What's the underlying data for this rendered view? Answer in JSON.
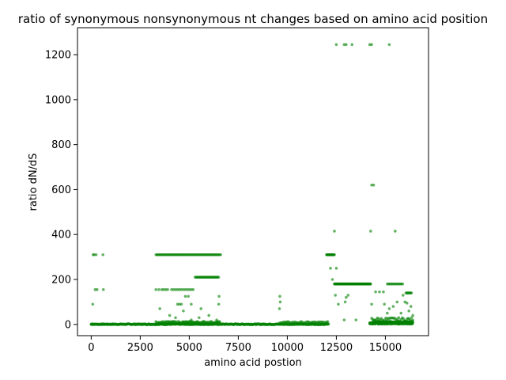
{
  "chart_data": {
    "type": "scatter",
    "title": "ratio of synonymous nonsynonymous nt changes based on amino acid position",
    "xlabel": "amino acid postion",
    "ylabel": "ratio dN/dS",
    "xlim": [
      -700,
      17200
    ],
    "ylim": [
      -50,
      1320
    ],
    "xticks": [
      0,
      2500,
      5000,
      7500,
      10000,
      12500,
      15000
    ],
    "xtick_labels": [
      "0",
      "2500",
      "5000",
      "7500",
      "10000",
      "12500",
      "15000"
    ],
    "yticks": [
      0,
      200,
      400,
      600,
      800,
      1000,
      1200
    ],
    "ytick_labels": [
      "0",
      "200",
      "400",
      "600",
      "800",
      "1000",
      "1200"
    ],
    "grid": false,
    "marker_color": "#008000",
    "marker_opacity": 0.6,
    "series": [
      {
        "points": [
          [
            0,
            0
          ],
          [
            50,
            3
          ],
          [
            100,
            310
          ],
          [
            150,
            310
          ],
          [
            200,
            155
          ],
          [
            250,
            310
          ],
          [
            300,
            155
          ],
          [
            80,
            90
          ],
          [
            600,
            310
          ],
          [
            620,
            155
          ],
          [
            650,
            0
          ],
          [
            9600,
            70
          ],
          [
            9620,
            125
          ],
          [
            9640,
            100
          ],
          [
            12200,
            250
          ],
          [
            12300,
            200
          ],
          [
            12400,
            415
          ],
          [
            12450,
            130
          ],
          [
            12500,
            250
          ],
          [
            12600,
            90
          ],
          [
            12500,
            1245
          ],
          [
            12900,
            1245
          ],
          [
            13000,
            1245
          ],
          [
            13300,
            1245
          ],
          [
            14200,
            1245
          ],
          [
            14300,
            1245
          ],
          [
            15200,
            1245
          ],
          [
            14300,
            620
          ],
          [
            14400,
            620
          ],
          [
            14250,
            415
          ],
          [
            15500,
            415
          ],
          [
            13000,
            120
          ],
          [
            13100,
            130
          ],
          [
            12950,
            100
          ],
          [
            12900,
            20
          ],
          [
            13500,
            20
          ],
          [
            14300,
            90
          ],
          [
            14500,
            145
          ],
          [
            14700,
            145
          ],
          [
            14900,
            145
          ],
          [
            14950,
            90
          ],
          [
            15100,
            50
          ],
          [
            15200,
            70
          ],
          [
            15400,
            80
          ],
          [
            15600,
            100
          ],
          [
            15900,
            130
          ],
          [
            16000,
            100
          ],
          [
            16100,
            95
          ],
          [
            16300,
            80
          ],
          [
            15800,
            50
          ],
          [
            16200,
            60
          ],
          [
            16400,
            40
          ],
          [
            3300,
            155
          ],
          [
            3450,
            155
          ],
          [
            3500,
            70
          ],
          [
            3600,
            155
          ],
          [
            3700,
            155
          ],
          [
            3800,
            155
          ],
          [
            3900,
            155
          ],
          [
            4100,
            155
          ],
          [
            4200,
            155
          ],
          [
            4300,
            155
          ],
          [
            4400,
            155
          ],
          [
            4500,
            155
          ],
          [
            4600,
            155
          ],
          [
            4700,
            155
          ],
          [
            4800,
            155
          ],
          [
            4900,
            155
          ],
          [
            5000,
            155
          ],
          [
            5100,
            155
          ],
          [
            5200,
            155
          ],
          [
            4400,
            90
          ],
          [
            4500,
            90
          ],
          [
            4600,
            90
          ],
          [
            4800,
            125
          ],
          [
            4950,
            125
          ],
          [
            5100,
            90
          ],
          [
            5600,
            70
          ],
          [
            6500,
            90
          ],
          [
            6520,
            125
          ],
          [
            4000,
            40
          ],
          [
            4300,
            30
          ],
          [
            4700,
            60
          ],
          [
            5100,
            20
          ],
          [
            5500,
            30
          ],
          [
            6000,
            40
          ],
          [
            6400,
            20
          ]
        ],
        "ranges": [
          {
            "x_from": 0,
            "x_to": 12100,
            "y": 0,
            "jitter": 4,
            "step": 25
          },
          {
            "x_from": 9600,
            "x_to": 12100,
            "y": 8,
            "jitter": 6,
            "step": 60
          },
          {
            "x_from": 12000,
            "x_to": 12400,
            "y": 310,
            "jitter": 0,
            "step": 20
          },
          {
            "x_from": 12400,
            "x_to": 14250,
            "y": 180,
            "jitter": 0,
            "step": 15
          },
          {
            "x_from": 14200,
            "x_to": 16400,
            "y": 5,
            "jitter": 12,
            "step": 8
          },
          {
            "x_from": 14300,
            "x_to": 16400,
            "y": 20,
            "jitter": 15,
            "step": 60
          },
          {
            "x_from": 15100,
            "x_to": 15900,
            "y": 180,
            "jitter": 0,
            "step": 60
          },
          {
            "x_from": 16050,
            "x_to": 16350,
            "y": 140,
            "jitter": 0,
            "step": 40
          },
          {
            "x_from": 3300,
            "x_to": 6600,
            "y": 310,
            "jitter": 0,
            "step": 50
          },
          {
            "x_from": 5300,
            "x_to": 6500,
            "y": 210,
            "jitter": 0,
            "step": 40
          },
          {
            "x_from": 3300,
            "x_to": 6600,
            "y": 8,
            "jitter": 8,
            "step": 40
          }
        ]
      }
    ]
  }
}
